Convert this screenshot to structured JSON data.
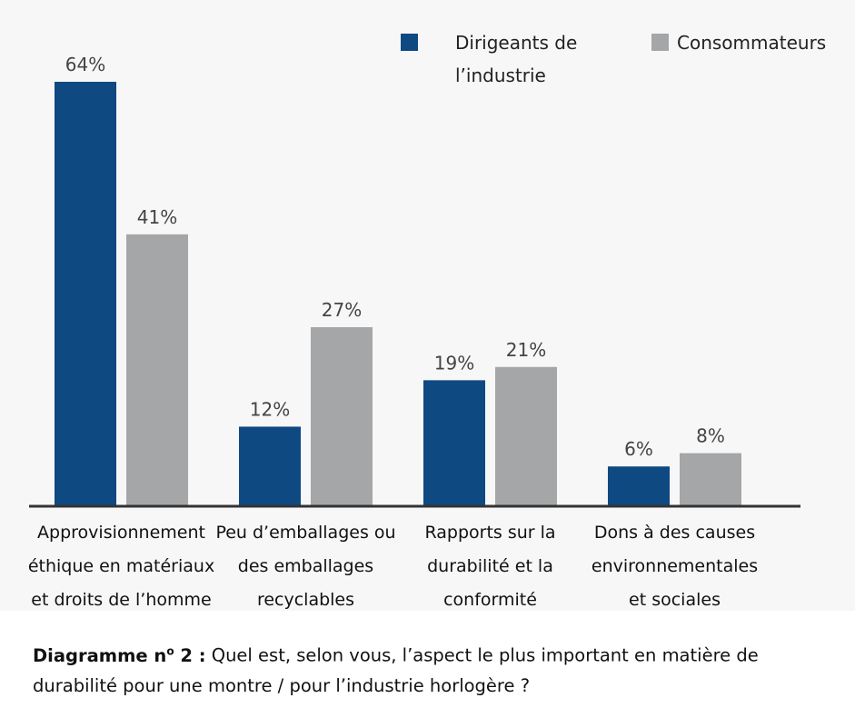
{
  "chart_data": {
    "type": "bar",
    "categories": [
      [
        "Approvisionnement",
        "éthique en matériaux",
        "et droits de l’homme"
      ],
      [
        "Peu d’emballages ou",
        "des emballages",
        "recyclables"
      ],
      [
        "Rapports sur la",
        "durabilité et la",
        "conformité"
      ],
      [
        "Dons à des causes",
        "environnementales",
        "et sociales"
      ]
    ],
    "series": [
      {
        "name": [
          "Dirigeants de",
          "l’industrie"
        ],
        "color": "#0f4981",
        "values": [
          64,
          12,
          19,
          6
        ],
        "labels": [
          "64%",
          "12%",
          "19%",
          "6%"
        ]
      },
      {
        "name": [
          "Consommateurs"
        ],
        "color": "#a5a6a8",
        "values": [
          41,
          27,
          21,
          8
        ],
        "labels": [
          "41%",
          "27%",
          "21%",
          "8%"
        ]
      }
    ],
    "ylim": [
      0,
      64
    ],
    "grid": false,
    "legend_position": "top-right",
    "unit": "%"
  },
  "caption": {
    "prefix": "Diagramme n",
    "superscript": "o",
    "number": " 2 :",
    "text_line1": " Quel est, selon vous, l’aspect le plus important en matière de",
    "text_line2": "durabilité pour une montre / pour l’industrie horlogère ?"
  }
}
